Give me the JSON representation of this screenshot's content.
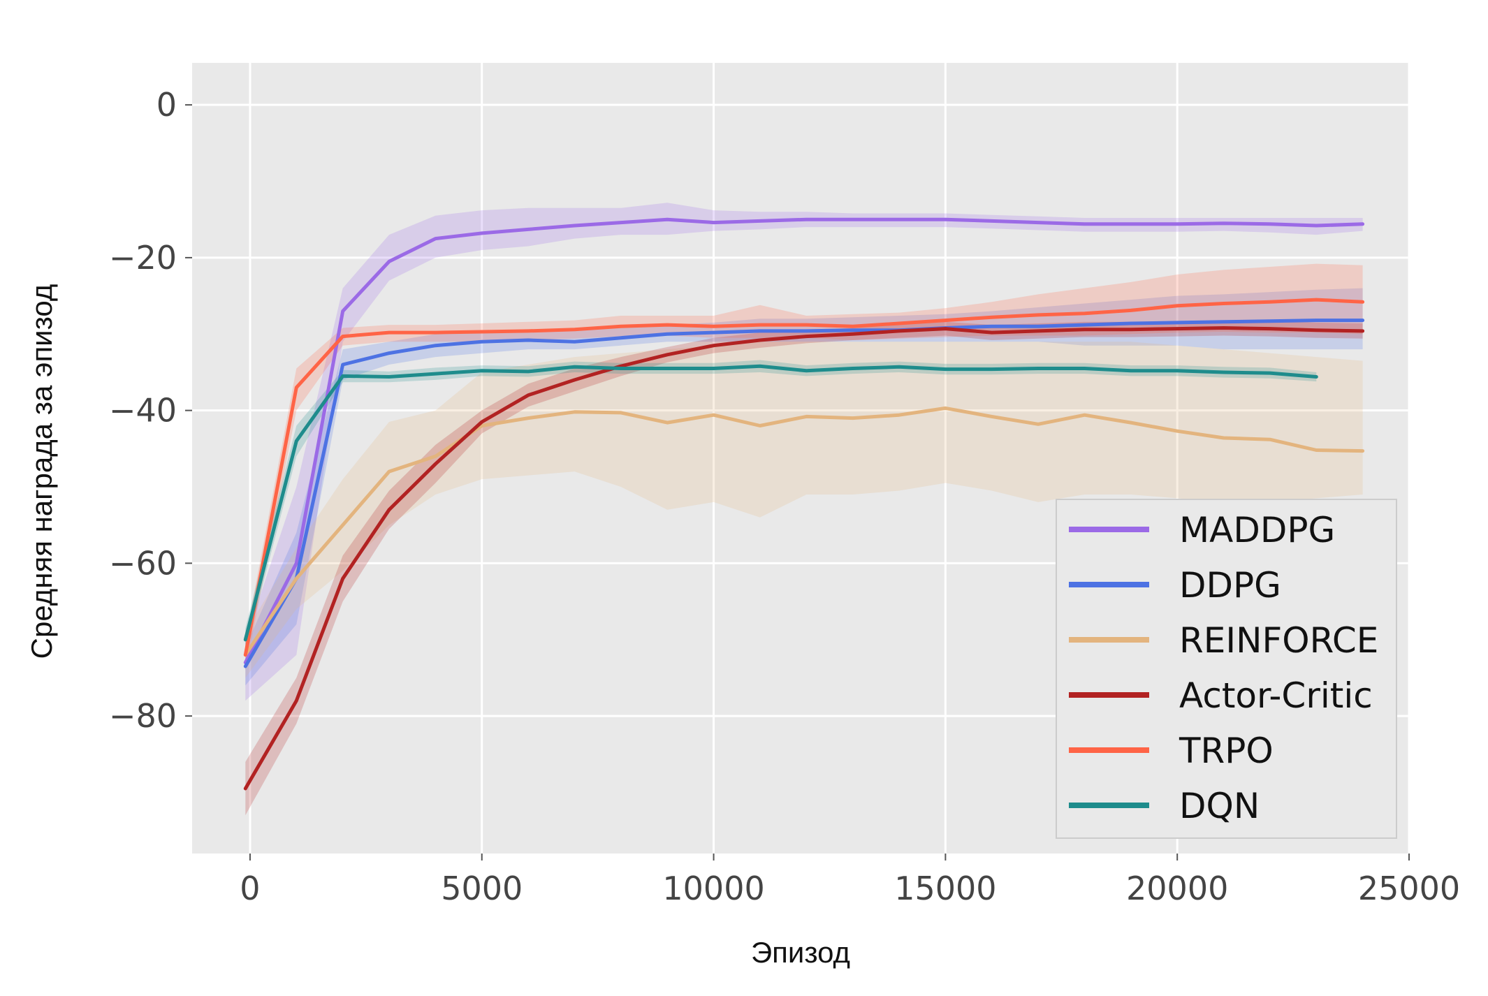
{
  "chart_data": {
    "type": "line",
    "title": "",
    "xlabel": "Эпизод",
    "ylabel": "Средняя награда за эпизод",
    "xlim": [
      -1250,
      25000
    ],
    "ylim": [
      -98,
      5.5
    ],
    "xticks": [
      0,
      5000,
      10000,
      15000,
      20000,
      25000
    ],
    "xtick_labels": [
      "0",
      "5000",
      "10000",
      "15000",
      "20000",
      "25000"
    ],
    "yticks": [
      0,
      -20,
      -40,
      -60,
      -80
    ],
    "ytick_labels": [
      "0",
      "−20",
      "−40",
      "−60",
      "−80"
    ],
    "grid": true,
    "legend_position": "lower-right",
    "series": [
      {
        "name": "MADDPG",
        "color": "#9b6ae6",
        "x": [
          -100,
          1000,
          2000,
          3000,
          4000,
          5000,
          6000,
          7000,
          8000,
          9000,
          10000,
          11000,
          12000,
          13000,
          14000,
          15000,
          16000,
          17000,
          18000,
          19000,
          20000,
          21000,
          22000,
          23000,
          24000
        ],
        "y": [
          -73,
          -60,
          -27,
          -20.5,
          -17.5,
          -16.8,
          -16.3,
          -15.8,
          -15.4,
          -15,
          -15.4,
          -15.2,
          -15,
          -15,
          -15,
          -15,
          -15.2,
          -15.4,
          -15.6,
          -15.6,
          -15.6,
          -15.5,
          -15.6,
          -15.8,
          -15.6
        ],
        "lower": [
          -78,
          -72,
          -31,
          -23,
          -20,
          -19,
          -18.5,
          -17.5,
          -17,
          -17,
          -16.5,
          -16.3,
          -16,
          -16,
          -16,
          -16,
          -16.2,
          -16.4,
          -16.6,
          -16.6,
          -16.6,
          -16.5,
          -16.7,
          -17,
          -16.5
        ],
        "upper": [
          -70,
          -50,
          -24,
          -17,
          -14.5,
          -13.8,
          -13.5,
          -13.5,
          -13.5,
          -12.8,
          -13.8,
          -14,
          -14,
          -14.2,
          -14.2,
          -14.2,
          -14.4,
          -14.6,
          -14.8,
          -14.8,
          -14.8,
          -14.8,
          -14.8,
          -14.8,
          -14.8
        ]
      },
      {
        "name": "DDPG",
        "color": "#4d72e3",
        "x": [
          -100,
          1000,
          2000,
          3000,
          4000,
          5000,
          6000,
          7000,
          8000,
          9000,
          10000,
          11000,
          12000,
          13000,
          14000,
          15000,
          16000,
          17000,
          18000,
          19000,
          20000,
          21000,
          22000,
          23000,
          24000
        ],
        "y": [
          -73.5,
          -62,
          -34,
          -32.5,
          -31.5,
          -31,
          -30.8,
          -31,
          -30.5,
          -30,
          -29.8,
          -29.6,
          -29.6,
          -29.5,
          -29.5,
          -29.2,
          -29,
          -29,
          -28.8,
          -28.6,
          -28.5,
          -28.4,
          -28.3,
          -28.2,
          -28.2
        ],
        "lower": [
          -76,
          -68,
          -36,
          -34,
          -33,
          -32.5,
          -32,
          -32,
          -31.5,
          -31,
          -31,
          -31,
          -31,
          -31,
          -31,
          -31,
          -31,
          -31,
          -31.5,
          -31.5,
          -31.5,
          -32,
          -32,
          -32,
          -32
        ],
        "upper": [
          -71,
          -56,
          -32,
          -31,
          -30,
          -29.5,
          -29.5,
          -29.5,
          -29,
          -28.8,
          -28.5,
          -28,
          -28,
          -27.8,
          -27.6,
          -27.4,
          -27,
          -26.5,
          -26,
          -25.5,
          -25,
          -24.8,
          -24.5,
          -24.2,
          -24
        ]
      },
      {
        "name": "REINFORCE",
        "color": "#e3b47e",
        "x": [
          -100,
          1000,
          2000,
          3000,
          4000,
          5000,
          6000,
          7000,
          8000,
          9000,
          10000,
          11000,
          12000,
          13000,
          14000,
          15000,
          16000,
          17000,
          18000,
          19000,
          20000,
          21000,
          22000,
          23000,
          24000
        ],
        "y": [
          -72,
          -62,
          -55,
          -48,
          -46,
          -42,
          -41,
          -40.2,
          -40.3,
          -41.6,
          -40.6,
          -42,
          -40.8,
          -41,
          -40.6,
          -39.7,
          -40.8,
          -41.8,
          -40.6,
          -41.6,
          -42.7,
          -43.6,
          -43.8,
          -45.2,
          -45.3
        ],
        "lower": [
          -75,
          -66,
          -61,
          -55,
          -51,
          -49,
          -48.5,
          -48,
          -50,
          -53,
          -52,
          -54,
          -51,
          -51,
          -50.5,
          -49.5,
          -50.5,
          -52,
          -51,
          -51,
          -51.5,
          -52,
          -52,
          -51.5,
          -51
        ],
        "upper": [
          -69,
          -58,
          -49,
          -41.5,
          -40,
          -35,
          -34,
          -33,
          -32.5,
          -32,
          -31.5,
          -31,
          -31,
          -31,
          -31,
          -31,
          -31,
          -31,
          -31,
          -31,
          -31.5,
          -32,
          -32.5,
          -33,
          -33.5
        ]
      },
      {
        "name": "Actor-Critic",
        "color": "#b22222",
        "x": [
          -100,
          1000,
          2000,
          3000,
          4000,
          5000,
          6000,
          7000,
          8000,
          9000,
          10000,
          11000,
          12000,
          13000,
          14000,
          15000,
          16000,
          17000,
          18000,
          19000,
          20000,
          21000,
          22000,
          23000,
          24000
        ],
        "y": [
          -89.5,
          -78,
          -62,
          -53,
          -47,
          -41.5,
          -38,
          -36,
          -34.2,
          -32.7,
          -31.5,
          -30.8,
          -30.3,
          -30,
          -29.6,
          -29.3,
          -29.8,
          -29.6,
          -29.4,
          -29.4,
          -29.3,
          -29.2,
          -29.3,
          -29.5,
          -29.6
        ],
        "lower": [
          -93,
          -81,
          -65,
          -55.5,
          -49.5,
          -43,
          -39.5,
          -37.5,
          -35.5,
          -33.7,
          -32.5,
          -31.8,
          -31.2,
          -30.8,
          -30.5,
          -30.2,
          -30.8,
          -30.6,
          -30.4,
          -30.4,
          -30.3,
          -30.2,
          -30.3,
          -30.5,
          -30.6
        ],
        "upper": [
          -86,
          -75,
          -59,
          -50.5,
          -44.5,
          -40,
          -36.5,
          -34.5,
          -33,
          -31.7,
          -30.5,
          -29.8,
          -29.4,
          -29.2,
          -28.8,
          -28.4,
          -28.8,
          -28.6,
          -28.4,
          -28.4,
          -28.3,
          -28.2,
          -28.3,
          -28.5,
          -28.6
        ]
      },
      {
        "name": "TRPO",
        "color": "#ff6446",
        "x": [
          -100,
          1000,
          2000,
          3000,
          4000,
          5000,
          6000,
          7000,
          8000,
          9000,
          10000,
          11000,
          12000,
          13000,
          14000,
          15000,
          16000,
          17000,
          18000,
          19000,
          20000,
          21000,
          22000,
          23000,
          24000
        ],
        "y": [
          -72,
          -37,
          -30.3,
          -29.8,
          -29.8,
          -29.7,
          -29.6,
          -29.4,
          -29,
          -28.8,
          -29,
          -28.8,
          -28.8,
          -29,
          -28.6,
          -28.2,
          -27.8,
          -27.5,
          -27.3,
          -26.9,
          -26.3,
          -26,
          -25.8,
          -25.5,
          -25.8
        ],
        "lower": [
          -74,
          -40,
          -31.5,
          -31,
          -31,
          -31,
          -30.8,
          -30.6,
          -30.3,
          -30.2,
          -30.5,
          -30.5,
          -30.5,
          -30.8,
          -30.6,
          -30.4,
          -30.2,
          -30.2,
          -30.2,
          -30,
          -29.8,
          -29.7,
          -29.8,
          -29.8,
          -30
        ],
        "upper": [
          -70,
          -34.5,
          -29.2,
          -28.8,
          -28.8,
          -28.6,
          -28.4,
          -28.2,
          -27.6,
          -27.6,
          -27.6,
          -26.2,
          -27.6,
          -27.4,
          -27.2,
          -26.6,
          -25.8,
          -24.8,
          -24,
          -23.2,
          -22.2,
          -21.6,
          -21.2,
          -20.8,
          -21
        ]
      },
      {
        "name": "DQN",
        "color": "#1e8c8c",
        "x": [
          -100,
          1000,
          2000,
          3000,
          4000,
          5000,
          6000,
          7000,
          8000,
          9000,
          10000,
          11000,
          12000,
          13000,
          14000,
          15000,
          16000,
          17000,
          18000,
          19000,
          20000,
          21000,
          22000,
          23000
        ],
        "y": [
          -70,
          -44,
          -35.5,
          -35.6,
          -35.2,
          -34.8,
          -34.9,
          -34.3,
          -34.5,
          -34.5,
          -34.5,
          -34.2,
          -34.8,
          -34.5,
          -34.3,
          -34.6,
          -34.6,
          -34.5,
          -34.5,
          -34.8,
          -34.8,
          -35,
          -35.1,
          -35.6
        ],
        "lower": [
          -71.5,
          -46,
          -36.3,
          -36.3,
          -36,
          -35.5,
          -35.6,
          -35,
          -35.2,
          -35.2,
          -35.2,
          -35,
          -35.5,
          -35.2,
          -35,
          -35.3,
          -35.3,
          -35.2,
          -35.2,
          -35.5,
          -35.5,
          -35.7,
          -35.8,
          -36.2
        ],
        "upper": [
          -68.5,
          -42,
          -34.7,
          -34.9,
          -34.4,
          -34.1,
          -34.2,
          -33.6,
          -33.8,
          -33.8,
          -33.8,
          -33.4,
          -34.1,
          -33.8,
          -33.6,
          -33.9,
          -33.9,
          -33.8,
          -33.8,
          -34.1,
          -34.1,
          -34.3,
          -34.4,
          -35
        ]
      }
    ]
  }
}
